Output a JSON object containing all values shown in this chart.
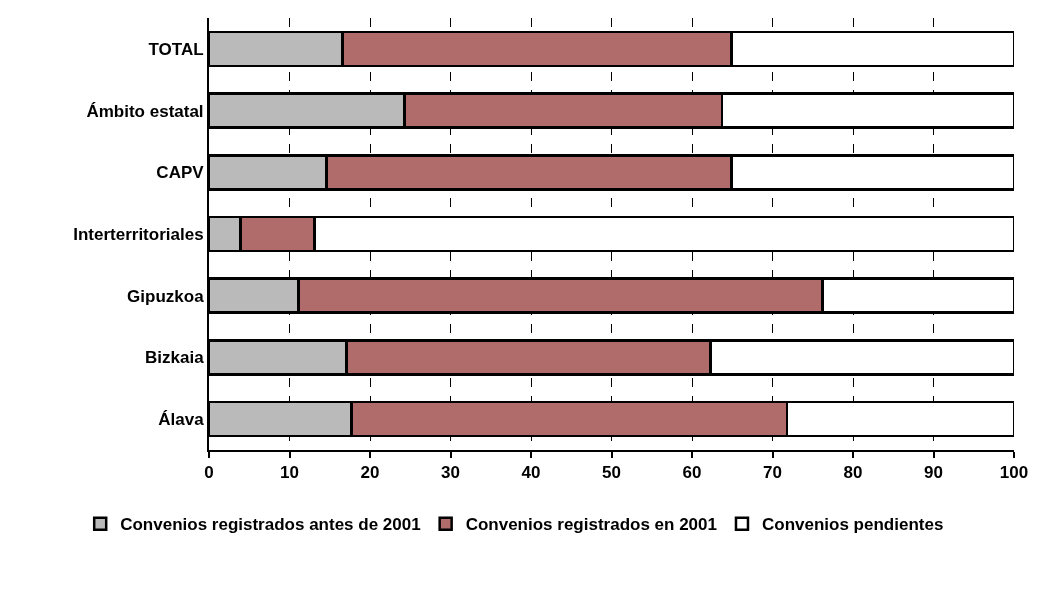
{
  "chart_data": {
    "type": "bar",
    "orientation": "horizontal",
    "stacked": true,
    "categories": [
      "TOTAL",
      "Ámbito estatal",
      "CAPV",
      "Interterritoriales",
      "Gipuzkoa",
      "Bizkaia",
      "Álava"
    ],
    "series": [
      {
        "name": "Convenios registrados antes de 2001",
        "color": "#bababa",
        "values": [
          16.6,
          24.3,
          14.6,
          3.9,
          11.1,
          17.1,
          17.7
        ]
      },
      {
        "name": "Convenios registrados en 2001",
        "color": "#b06b6b",
        "values": [
          48.3,
          39.4,
          50.3,
          9.2,
          65.1,
          45.2,
          54.1
        ]
      },
      {
        "name": "Convenios pendientes",
        "color": "#ffffff",
        "values": [
          35.1,
          36.3,
          35.1,
          86.9,
          23.8,
          37.7,
          28.2
        ]
      }
    ],
    "xlim": [
      0,
      100
    ],
    "xticks": [
      0,
      10,
      20,
      30,
      40,
      50,
      60,
      70,
      80,
      90,
      100
    ],
    "grid": "x",
    "legend": "bottom"
  }
}
